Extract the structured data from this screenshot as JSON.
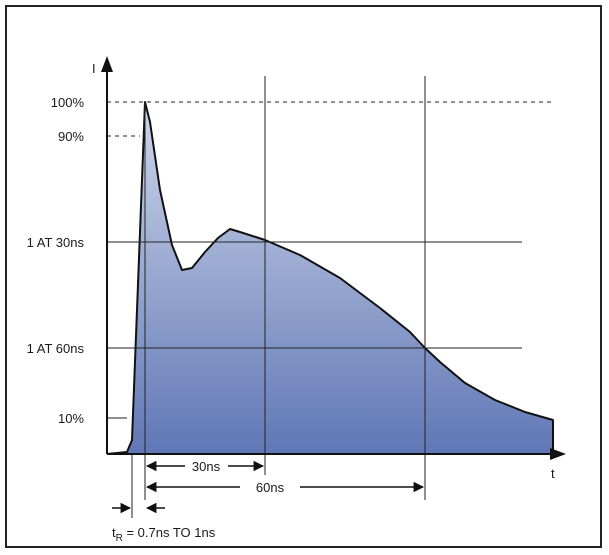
{
  "axes": {
    "y_label": "I",
    "x_label": "t"
  },
  "y_levels": {
    "p100": "100%",
    "p90": "90%",
    "at30": "1 AT 30ns",
    "at60": "1 AT 60ns",
    "p10": "10%"
  },
  "intervals": {
    "ns30": "30ns",
    "ns60": "60ns"
  },
  "rise_time": {
    "t": "t",
    "sub": "R",
    "rest": " = 0.7ns TO 1ns"
  },
  "colors": {
    "fill_top": "#cfd7ea",
    "fill_bottom": "#6077b6",
    "curve": "#111111",
    "frame": "#222222"
  }
}
